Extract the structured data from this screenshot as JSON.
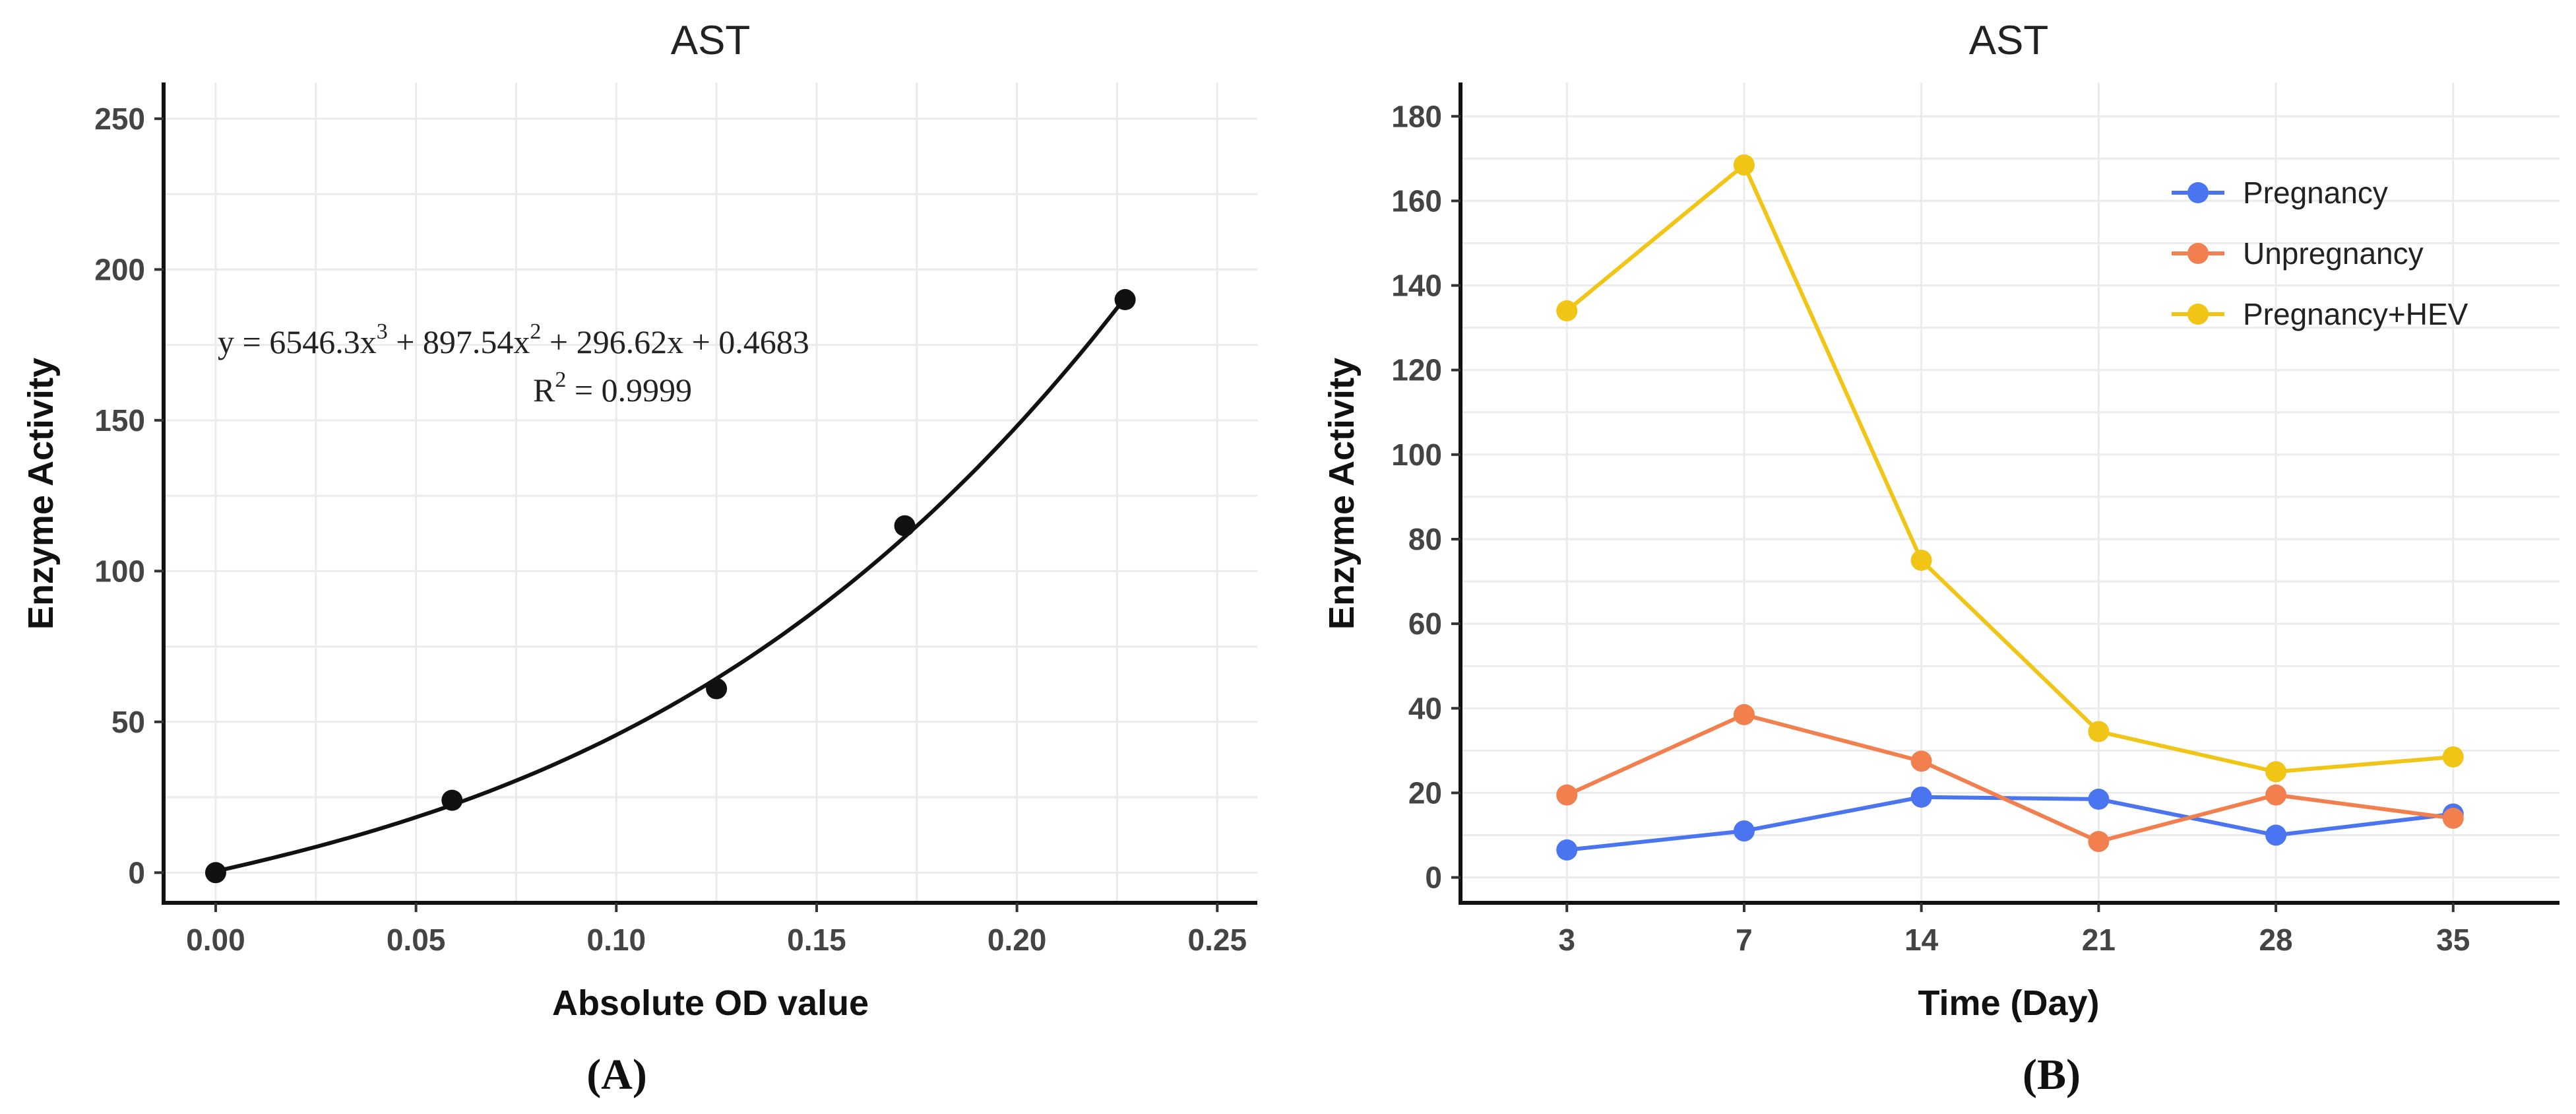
{
  "chart_data": [
    {
      "type": "scatter",
      "title": "AST",
      "xlabel": "Absolute OD value",
      "ylabel": "Enzyme Activity",
      "panel_label": "(A)",
      "xlim": [
        -0.013,
        0.26
      ],
      "ylim": [
        -10,
        262
      ],
      "xticks": [
        0.0,
        0.05,
        0.1,
        0.15,
        0.2,
        0.25
      ],
      "xtick_labels": [
        "0.00",
        "0.05",
        "0.10",
        "0.15",
        "0.20",
        "0.25"
      ],
      "yticks": [
        0,
        50,
        100,
        150,
        200,
        250
      ],
      "ytick_labels": [
        "0",
        "50",
        "100",
        "150",
        "200",
        "250"
      ],
      "points": [
        {
          "x": 0.0,
          "y": 0
        },
        {
          "x": 0.059,
          "y": 24
        },
        {
          "x": 0.125,
          "y": 61
        },
        {
          "x": 0.172,
          "y": 115
        },
        {
          "x": 0.227,
          "y": 190
        }
      ],
      "fit": {
        "coefficients": [
          6546.3,
          897.54,
          296.62,
          0.4683
        ],
        "xrange": [
          0.0,
          0.227
        ]
      },
      "equation": {
        "y_eq": "y = 6546.3x",
        "sup3": "3",
        "mid": " + 897.54x",
        "sup2": "2",
        "tail": " + 296.62x + 0.4683",
        "r_label": "R",
        "r_sup": "2",
        "r_tail": " = 0.9999"
      },
      "grid": true
    },
    {
      "type": "line",
      "title": "AST",
      "xlabel": "Time (Day)",
      "ylabel": "Enzyme Activity",
      "panel_label": "(B)",
      "categories": [
        "3",
        "7",
        "14",
        "21",
        "28",
        "35"
      ],
      "ylim": [
        -6,
        188
      ],
      "yticks": [
        0,
        20,
        40,
        60,
        80,
        100,
        120,
        140,
        160,
        180
      ],
      "ytick_labels": [
        "0",
        "20",
        "40",
        "60",
        "80",
        "100",
        "120",
        "140",
        "160",
        "180"
      ],
      "series": [
        {
          "name": "Pregnancy",
          "color": "#4a74f0",
          "values": [
            6.5,
            11,
            19,
            18.5,
            10,
            15
          ]
        },
        {
          "name": "Unpregnancy",
          "color": "#f2804e",
          "values": [
            19.5,
            38.5,
            27.5,
            8.5,
            19.5,
            14
          ]
        },
        {
          "name": "Pregnancy+HEV",
          "color": "#f0c515",
          "values": [
            134,
            168.5,
            75,
            34.5,
            25,
            28.5
          ]
        }
      ],
      "legend_position": "top-right",
      "grid": true
    }
  ]
}
